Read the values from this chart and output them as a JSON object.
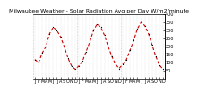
{
  "title": "Milwaukee Weather - Solar Radiation Avg per Day W/m2/minute",
  "y_max": 400,
  "y_min": 0,
  "background_color": "#ffffff",
  "line_color": "#cc0000",
  "marker_color": "#000000",
  "grid_color": "#999999",
  "ytick_vals": [
    50,
    100,
    150,
    200,
    250,
    300,
    350,
    400
  ],
  "values": [
    120,
    100,
    160,
    200,
    280,
    320,
    300,
    260,
    200,
    130,
    80,
    60,
    80,
    110,
    170,
    230,
    300,
    340,
    320,
    270,
    200,
    140,
    90,
    65,
    90,
    120,
    180,
    240,
    310,
    350,
    330,
    280,
    210,
    140,
    85,
    60
  ],
  "n_years": 3,
  "months_per_year": 12,
  "xtick_labels": [
    "J",
    "F",
    "M",
    "A",
    "M",
    "J",
    "J",
    "A",
    "S",
    "O",
    "N",
    "D",
    "J",
    "F",
    "M",
    "A",
    "M",
    "J",
    "J",
    "A",
    "S",
    "O",
    "N",
    "D",
    "J",
    "F",
    "M",
    "A",
    "M",
    "J",
    "J",
    "A",
    "S",
    "O",
    "N",
    "D"
  ],
  "title_fontsize": 4.5,
  "tick_fontsize": 3.5,
  "line_width": 0.8,
  "dash_pattern": [
    3,
    2
  ]
}
